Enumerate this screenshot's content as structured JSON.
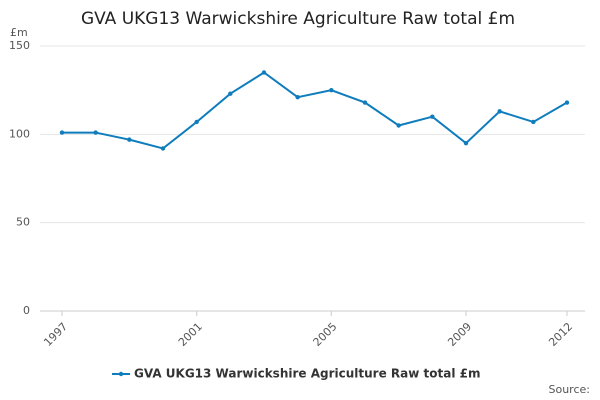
{
  "chart_data": {
    "type": "line",
    "title": "GVA UKG13 Warwickshire Agriculture Raw total £m",
    "y_label": "£m",
    "source": "Source:",
    "x": [
      1997,
      1998,
      1999,
      2000,
      2001,
      2002,
      2003,
      2004,
      2005,
      2006,
      2007,
      2008,
      2009,
      2010,
      2011,
      2012
    ],
    "series": [
      {
        "name": "GVA UKG13 Warwickshire Agriculture Raw total £m",
        "color": "#0f7dbd",
        "values": [
          101,
          101,
          97,
          92,
          107,
          123,
          135,
          121,
          125,
          118,
          105,
          110,
          95,
          113,
          107,
          118
        ]
      }
    ],
    "xlim": [
      1997,
      2012
    ],
    "xticks": [
      1997,
      2001,
      2005,
      2009,
      2012
    ],
    "ylim": [
      0,
      150
    ],
    "yticks": [
      0,
      50,
      100,
      150
    ],
    "grid": true,
    "legend": "bottom"
  }
}
